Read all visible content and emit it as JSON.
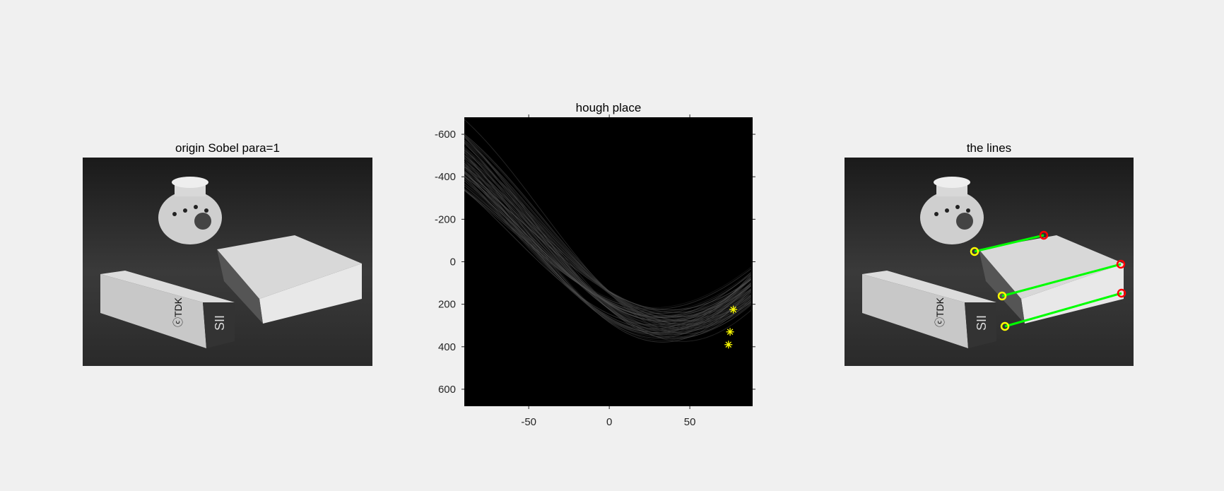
{
  "panels": {
    "left_title": "origin Sobel para=1",
    "middle_title": "hough place",
    "right_title": "the lines"
  },
  "photo_text": {
    "brand": "ⓒTDK",
    "model": "SII"
  },
  "colors": {
    "figure_background": "#f0f0f0",
    "hough_background": "#000000",
    "peak_marker": "#ffff00",
    "line": "#00ff00",
    "start_point": "#ffff00",
    "end_point": "#ff0000"
  },
  "chart_data": {
    "type": "heatmap",
    "title": "hough place",
    "xlabel": "",
    "ylabel": "",
    "xlim": [
      -90,
      89
    ],
    "ylim": [
      680,
      -680
    ],
    "y_axis_reversed": true,
    "x_ticks": [
      -50,
      0,
      50
    ],
    "y_ticks": [
      -600,
      -400,
      -200,
      0,
      200,
      400,
      600
    ],
    "peaks": [
      {
        "theta": 77,
        "rho": 225
      },
      {
        "theta": 75,
        "rho": 330
      },
      {
        "theta": 74,
        "rho": 390
      }
    ],
    "detected_lines": [
      {
        "start": "yellow",
        "end": "red"
      },
      {
        "start": "yellow",
        "end": "red"
      },
      {
        "start": "yellow",
        "end": "red"
      }
    ]
  }
}
